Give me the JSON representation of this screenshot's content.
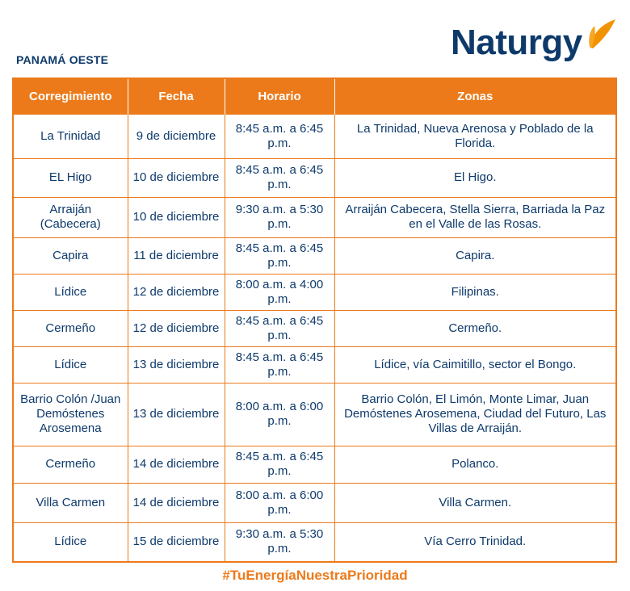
{
  "header": {
    "region": "PANAMÁ OESTE",
    "logo_text": "Naturgy",
    "brand_colors": {
      "navy": "#0e3a6b",
      "orange": "#ec7a1b"
    }
  },
  "table": {
    "columns": [
      "Corregimiento",
      "Fecha",
      "Horario",
      "Zonas"
    ],
    "rows": [
      {
        "corregimiento": "La Trinidad",
        "fecha": "9 de diciembre",
        "horario": "8:45 a.m. a 6:45 p.m.",
        "zonas": "La Trinidad, Nueva Arenosa y Poblado de la Florida."
      },
      {
        "corregimiento": "EL Higo",
        "fecha": "10 de diciembre",
        "horario": "8:45 a.m. a 6:45 p.m.",
        "zonas": "El Higo."
      },
      {
        "corregimiento": "Arraiján (Cabecera)",
        "fecha": "10 de diciembre",
        "horario": "9:30 a.m. a 5:30 p.m.",
        "zonas": "Arraiján Cabecera, Stella Sierra, Barriada la Paz en el Valle de las Rosas."
      },
      {
        "corregimiento": "Capira",
        "fecha": "11 de diciembre",
        "horario": "8:45 a.m. a 6:45 p.m.",
        "zonas": "Capira."
      },
      {
        "corregimiento": "Lídice",
        "fecha": "12 de diciembre",
        "horario": "8:00 a.m. a 4:00 p.m.",
        "zonas": "Filipinas."
      },
      {
        "corregimiento": "Cermeño",
        "fecha": "12 de diciembre",
        "horario": "8:45 a.m. a 6:45 p.m.",
        "zonas": "Cermeño."
      },
      {
        "corregimiento": "Lídice",
        "fecha": "13 de diciembre",
        "horario": "8:45 a.m. a 6:45 p.m.",
        "zonas": "Lídice, vía Caimitillo, sector el Bongo."
      },
      {
        "corregimiento": "Barrio Colón /Juan Demóstenes Arosemena",
        "fecha": "13 de diciembre",
        "horario": "8:00 a.m. a 6:00 p.m.",
        "zonas": "Barrio Colón, El Limón, Monte Limar, Juan Demóstenes Arosemena, Ciudad del Futuro, Las Villas de Arraiján."
      },
      {
        "corregimiento": "Cermeño",
        "fecha": "14 de diciembre",
        "horario": "8:45 a.m. a 6:45 p.m.",
        "zonas": "Polanco."
      },
      {
        "corregimiento": "Villa Carmen",
        "fecha": "14 de diciembre",
        "horario": "8:00 a.m. a 6:00 p.m.",
        "zonas": "Villa Carmen."
      },
      {
        "corregimiento": "Lídice",
        "fecha": "15 de diciembre",
        "horario": "9:30 a.m. a 5:30 p.m.",
        "zonas": "Vía Cerro Trinidad."
      }
    ]
  },
  "footer": {
    "hashtag": "#TuEnergíaNuestraPrioridad"
  }
}
